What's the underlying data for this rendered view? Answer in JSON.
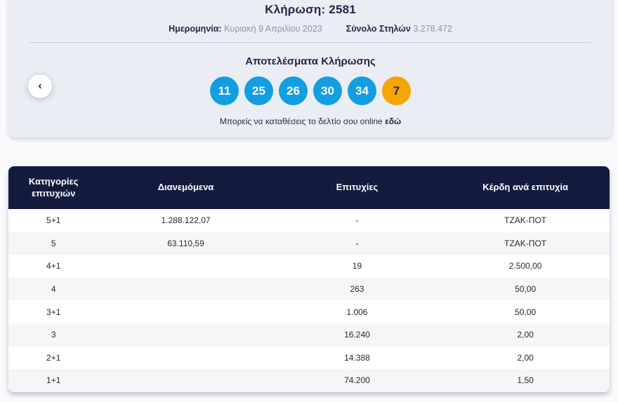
{
  "draw": {
    "title": "Κλήρωση: 2581",
    "date_label": "Ημερομηνία:",
    "date_value": "Κυριακή 9 Απριλίου 2023",
    "columns_label": "Σύνολο Στηλών",
    "columns_value": "3.278.472",
    "results_title": "Αποτελέσματα Κλήρωσης",
    "prev_button_glyph": "‹",
    "numbers": [
      {
        "value": "11",
        "type": "main"
      },
      {
        "value": "25",
        "type": "main"
      },
      {
        "value": "26",
        "type": "main"
      },
      {
        "value": "30",
        "type": "main"
      },
      {
        "value": "34",
        "type": "main"
      },
      {
        "value": "7",
        "type": "bonus"
      }
    ],
    "online_text_prefix": "Μπορείς να καταθέσεις το δελτίο σου online",
    "online_link_label": "εδώ"
  },
  "table": {
    "headers": {
      "category": "Κατηγορίες επιτυχιών",
      "distributed": "Διανεμόμενα",
      "winners": "Επιτυχίες",
      "prize": "Κέρδη ανά επιτυχία"
    },
    "rows": [
      {
        "category": "5+1",
        "distributed": "1.288.122,07",
        "winners": "-",
        "prize": "ΤΖΑΚ-ΠΟΤ"
      },
      {
        "category": "5",
        "distributed": "63.110,59",
        "winners": "-",
        "prize": "ΤΖΑΚ-ΠΟΤ"
      },
      {
        "category": "4+1",
        "distributed": "",
        "winners": "19",
        "prize": "2.500,00"
      },
      {
        "category": "4",
        "distributed": "",
        "winners": "263",
        "prize": "50,00"
      },
      {
        "category": "3+1",
        "distributed": "",
        "winners": "1.006",
        "prize": "50,00"
      },
      {
        "category": "3",
        "distributed": "",
        "winners": "16.240",
        "prize": "2,00"
      },
      {
        "category": "2+1",
        "distributed": "",
        "winners": "14.388",
        "prize": "2,00"
      },
      {
        "category": "1+1",
        "distributed": "",
        "winners": "74.200",
        "prize": "1,50"
      }
    ]
  },
  "colors": {
    "navy": "#131c3f",
    "textnavy": "#1c2747",
    "blue": "#149ee2",
    "amber": "#f6a400",
    "cardbg": "#ebedf4",
    "pagebg": "#fafafc",
    "altrow": "#f5f6f8",
    "graytext": "#8e94a3"
  }
}
